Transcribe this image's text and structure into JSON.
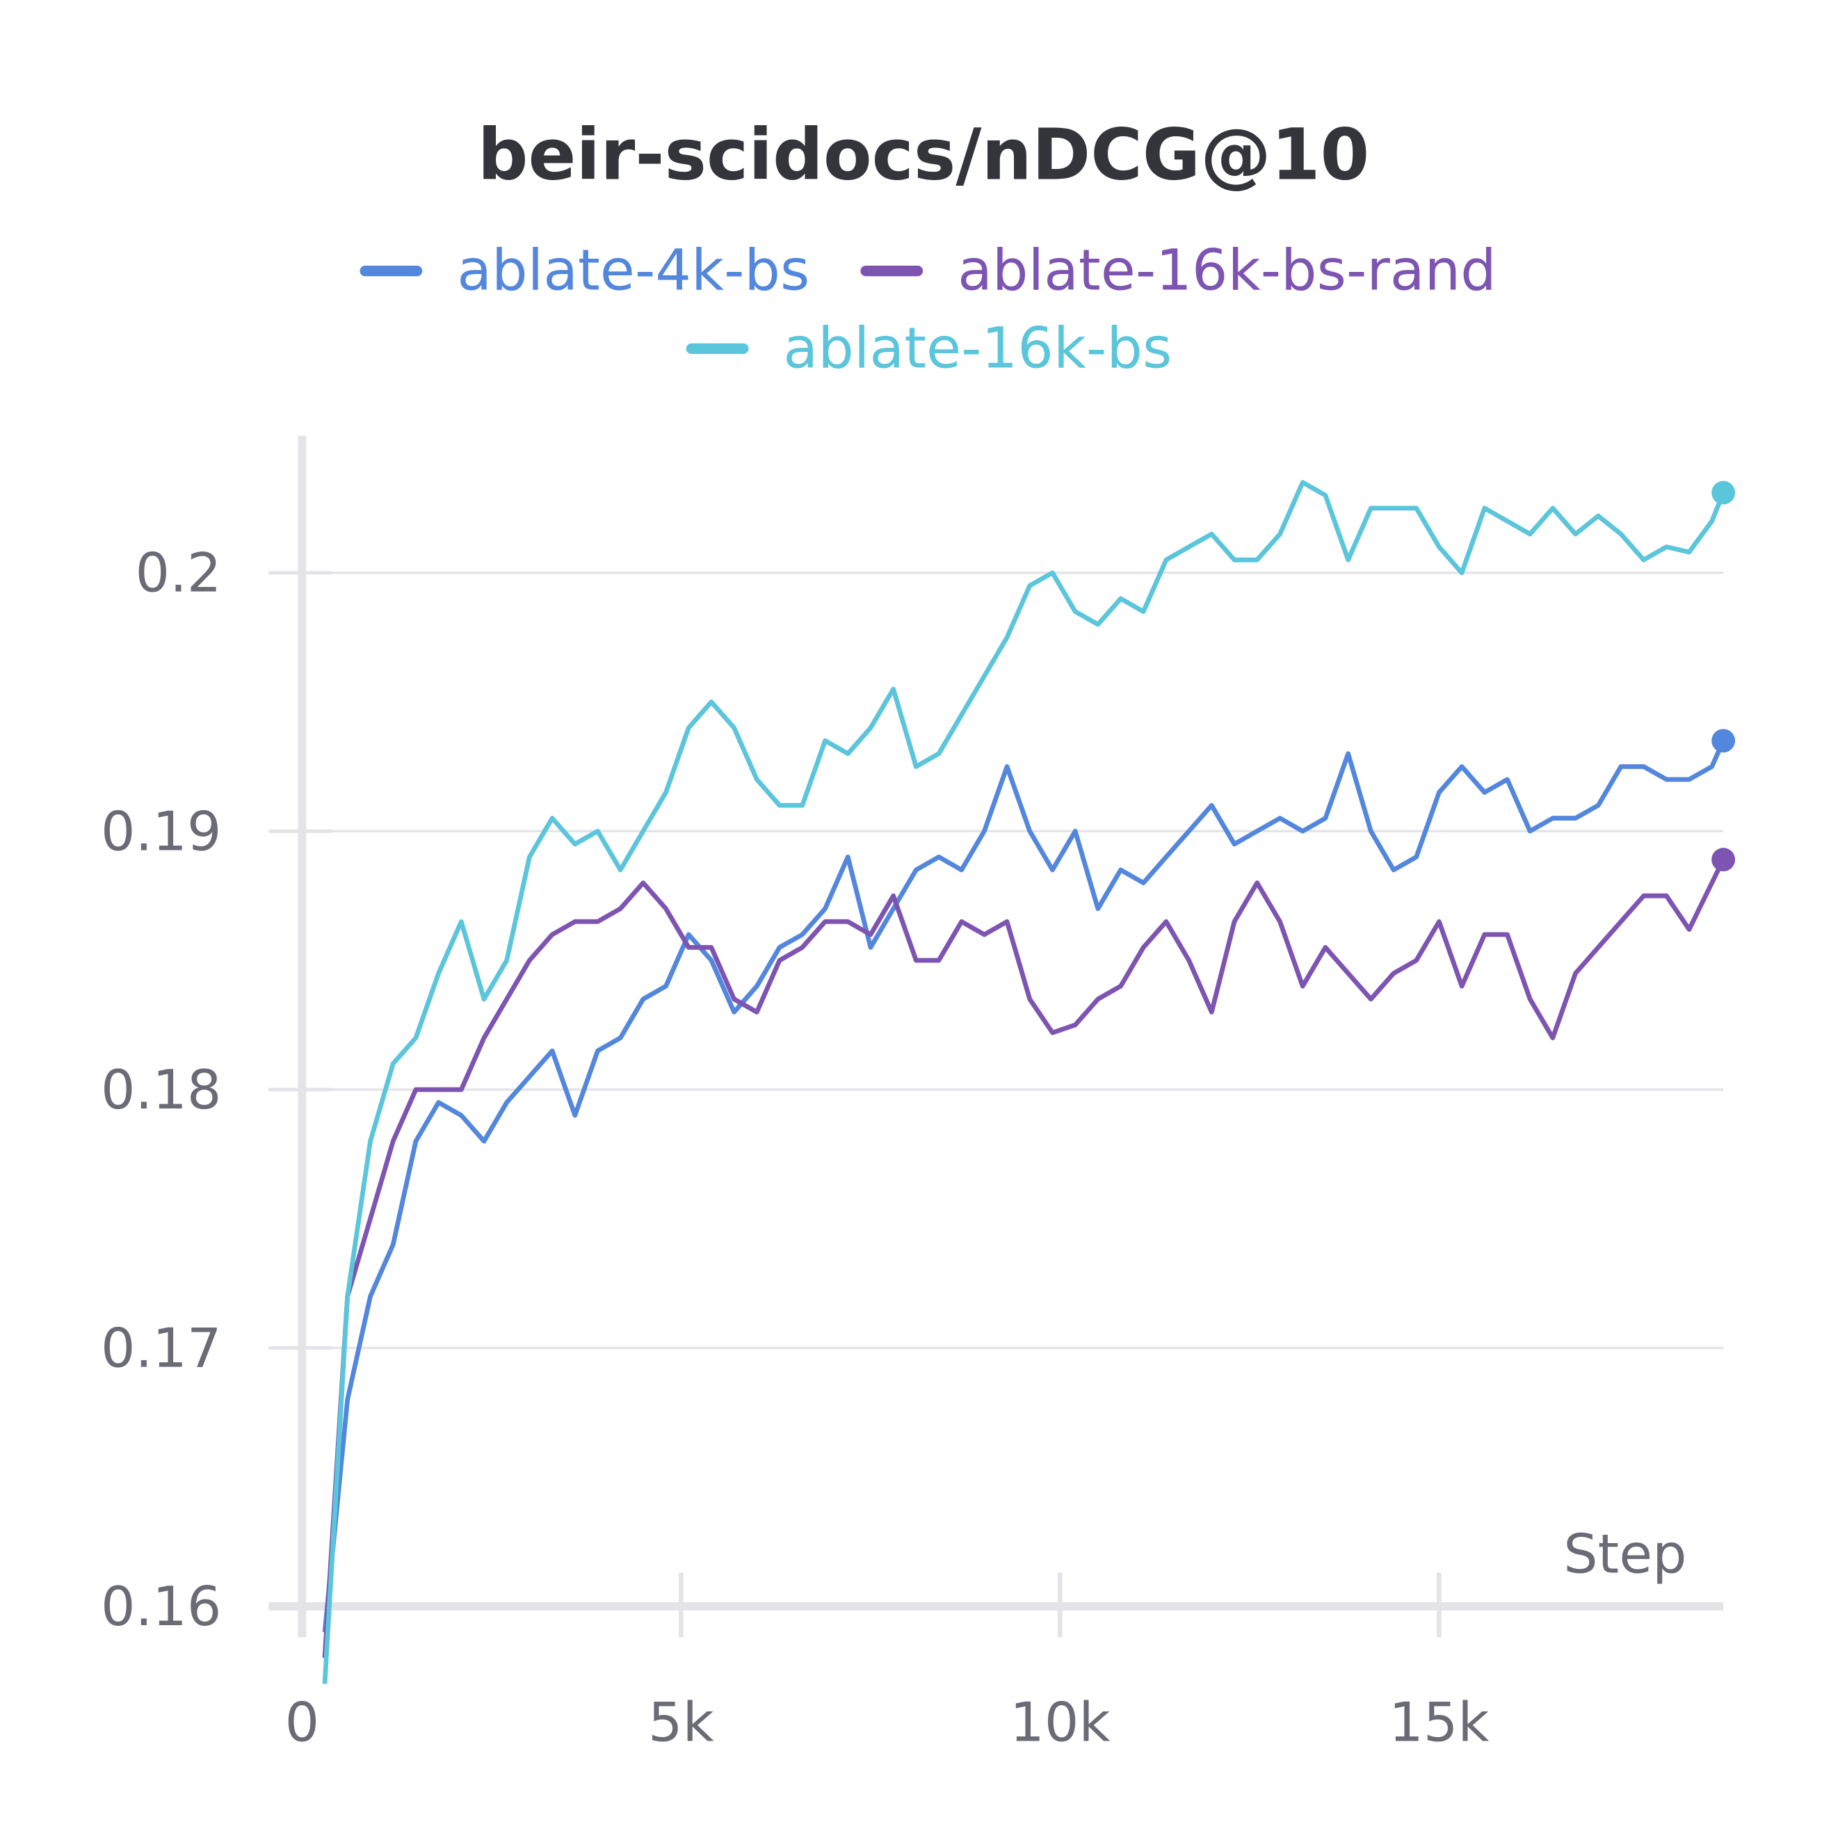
{
  "chart_data": {
    "type": "line",
    "title": "beir-scidocs/nDCG@10",
    "x_label": "Step",
    "xlim": [
      -100,
      18750
    ],
    "ylim": [
      0.1588,
      0.2053
    ],
    "xticks": [
      0,
      {
        "value": 5000,
        "label": "5k"
      },
      {
        "value": 10000,
        "label": "10k"
      },
      {
        "value": 15000,
        "label": "15k"
      }
    ],
    "yticks": [
      0.16,
      0.17,
      0.18,
      0.19,
      0.2
    ],
    "grid": true,
    "legend": "top",
    "x": [
      300,
      600,
      900,
      1200,
      1500,
      1800,
      2100,
      2400,
      2700,
      3000,
      3300,
      3600,
      3900,
      4200,
      4500,
      4800,
      5100,
      5400,
      5700,
      6000,
      6300,
      6600,
      6900,
      7200,
      7500,
      7800,
      8100,
      8400,
      8700,
      9000,
      9300,
      9600,
      9900,
      10200,
      10500,
      10800,
      11100,
      11400,
      11700,
      12000,
      12300,
      12600,
      12900,
      13200,
      13500,
      13800,
      14100,
      14400,
      14700,
      15000,
      15300,
      15600,
      15900,
      16200,
      16500,
      16800,
      17100,
      17400,
      17700,
      18000,
      18300,
      18600,
      18750
    ],
    "series": [
      {
        "name": "ablate-4k-bs",
        "color": "#5387dd",
        "values": [
          0.159,
          0.168,
          0.172,
          0.174,
          0.178,
          0.1795,
          0.179,
          0.178,
          0.1795,
          0.1805,
          0.1815,
          0.179,
          0.1815,
          0.182,
          0.1835,
          0.184,
          0.186,
          0.185,
          0.183,
          0.184,
          0.1855,
          0.186,
          0.187,
          0.189,
          0.1855,
          0.187,
          0.1885,
          0.189,
          0.1885,
          0.19,
          0.1925,
          0.19,
          0.1885,
          0.19,
          0.187,
          0.1885,
          0.188,
          0.189,
          0.19,
          0.191,
          0.1895,
          0.19,
          0.1905,
          0.19,
          0.1905,
          0.193,
          0.19,
          0.1885,
          0.189,
          0.1915,
          0.1925,
          0.1915,
          0.192,
          0.19,
          0.1905,
          0.1905,
          0.191,
          0.1925,
          0.1925,
          0.192,
          0.192,
          0.1925,
          0.1935
        ]
      },
      {
        "name": "ablate-16k-bs-rand",
        "color": "#7d54b2",
        "values": [
          0.158,
          0.172,
          0.175,
          0.178,
          0.18,
          0.18,
          0.18,
          0.182,
          0.1835,
          0.185,
          0.186,
          0.1865,
          0.1865,
          0.187,
          0.188,
          0.187,
          0.1855,
          0.1855,
          0.1835,
          0.183,
          0.185,
          0.1855,
          0.1865,
          0.1865,
          0.186,
          0.1875,
          0.185,
          0.185,
          0.1865,
          0.186,
          0.1865,
          0.1835,
          0.1822,
          0.1825,
          0.1835,
          0.184,
          0.1855,
          0.1865,
          0.185,
          0.183,
          0.1865,
          0.188,
          0.1865,
          0.184,
          0.1855,
          0.1845,
          0.1835,
          0.1845,
          0.185,
          0.1865,
          0.184,
          0.186,
          0.186,
          0.1835,
          0.182,
          0.1845,
          0.1855,
          0.1865,
          0.1875,
          0.1875,
          0.1862,
          0.188,
          0.1889
        ]
      },
      {
        "name": "ablate-16k-bs",
        "color": "#5bc5db",
        "values": [
          0.157,
          0.172,
          0.178,
          0.181,
          0.182,
          0.1845,
          0.1865,
          0.1835,
          0.185,
          0.189,
          0.1905,
          0.1895,
          0.19,
          0.1885,
          0.19,
          0.1915,
          0.194,
          0.195,
          0.194,
          0.192,
          0.191,
          0.191,
          0.1935,
          0.193,
          0.194,
          0.1955,
          0.1925,
          0.193,
          0.1945,
          0.196,
          0.1975,
          0.1995,
          0.2,
          0.1985,
          0.198,
          0.199,
          0.1985,
          0.2005,
          0.201,
          0.2015,
          0.2005,
          0.2005,
          0.2015,
          0.2035,
          0.203,
          0.2005,
          0.2025,
          0.2025,
          0.2025,
          0.201,
          0.2,
          0.2025,
          0.202,
          0.2015,
          0.2025,
          0.2015,
          0.2022,
          0.2015,
          0.2005,
          0.201,
          0.2008,
          0.202,
          0.2031
        ]
      }
    ]
  }
}
